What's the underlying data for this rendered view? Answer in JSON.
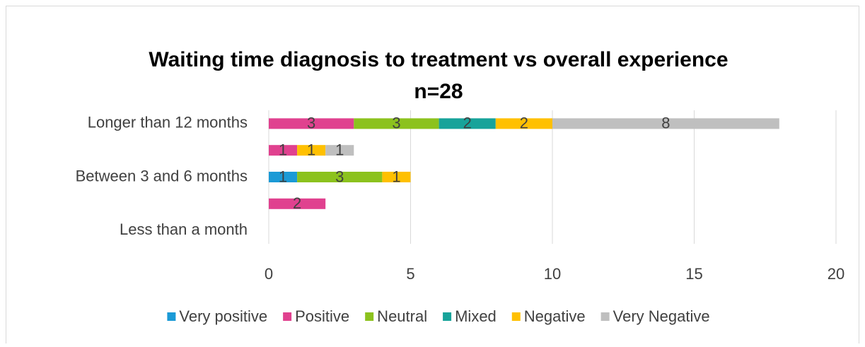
{
  "chart_data": {
    "type": "stacked-bar-horizontal",
    "title": "Waiting time diagnosis to treatment vs overall experience",
    "subtitle": "n=28",
    "categories": [
      "Longer than 12 months",
      null,
      "Between 3 and 6 months",
      null,
      "Less than a month"
    ],
    "series": [
      {
        "name": "Very positive",
        "color": "#1b9ad6",
        "values": [
          null,
          null,
          1,
          null,
          null
        ]
      },
      {
        "name": "Positive",
        "color": "#e0418f",
        "values": [
          3,
          1,
          null,
          2,
          null
        ]
      },
      {
        "name": "Neutral",
        "color": "#8cc21e",
        "values": [
          3,
          null,
          3,
          null,
          null
        ]
      },
      {
        "name": "Mixed",
        "color": "#17a39a",
        "values": [
          2,
          null,
          null,
          null,
          null
        ]
      },
      {
        "name": "Negative",
        "color": "#ffc000",
        "values": [
          2,
          1,
          1,
          null,
          null
        ]
      },
      {
        "name": "Very Negative",
        "color": "#bfbfbf",
        "values": [
          8,
          1,
          null,
          null,
          null
        ]
      }
    ],
    "xlim": [
      0,
      20
    ],
    "xticks": [
      0,
      5,
      10,
      15,
      20
    ],
    "grid": true,
    "legend": "bottom"
  }
}
